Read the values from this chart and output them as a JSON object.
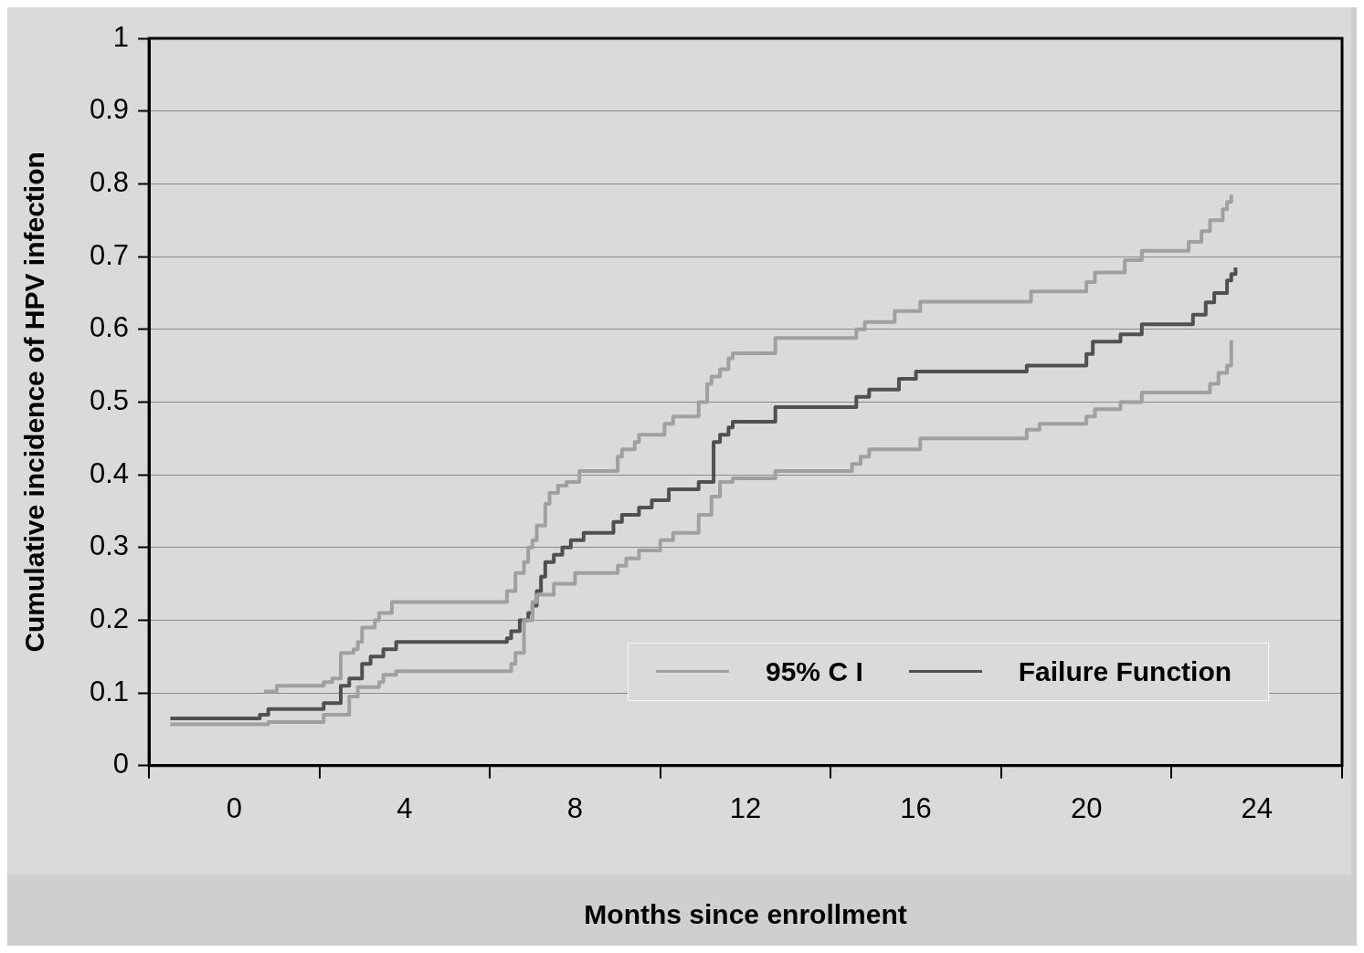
{
  "chart_data": {
    "type": "step",
    "xlabel": "Months since enrollment",
    "ylabel": "Cumulative incidence of HPV infection",
    "xlim": [
      -2,
      26
    ],
    "ylim": [
      0,
      1
    ],
    "xticks": [
      {
        "value": -2,
        "label": null
      },
      0,
      {
        "value": 2,
        "label": null
      },
      4,
      {
        "value": 6,
        "label": null
      },
      8,
      {
        "value": 10,
        "label": null
      },
      12,
      {
        "value": 14,
        "label": null
      },
      16,
      {
        "value": 18,
        "label": null
      },
      20,
      {
        "value": 22,
        "label": null
      },
      24,
      {
        "value": 26,
        "label": null
      }
    ],
    "yticks": [
      0,
      0.1,
      0.2,
      0.3,
      0.4,
      0.5,
      0.6,
      0.7,
      0.8,
      0.9,
      1
    ],
    "grid": "y",
    "legend": "bottom right",
    "line_style": "solid",
    "marker": "none",
    "series": [
      {
        "name": "95% C I",
        "color": "#a0a0a0",
        "x": [
          0.7,
          1.0,
          2.1,
          2.3,
          2.5,
          2.5,
          2.8,
          2.9,
          3.0,
          3.3,
          3.4,
          3.7,
          6.4,
          6.6,
          6.8,
          6.9,
          7.0,
          7.1,
          7.3,
          7.4,
          7.6,
          7.8,
          8.1,
          9.0,
          9.1,
          9.4,
          9.5,
          10.1,
          10.3,
          10.9,
          11.1,
          11.2,
          11.4,
          11.6,
          11.7,
          12.7,
          14.6,
          14.8,
          15.5,
          16.1,
          18.7,
          20.0,
          20.2,
          20.9,
          21.3,
          22.4,
          22.7,
          22.9,
          23.2,
          23.3,
          23.4
        ],
        "values": [
          0.102,
          0.11,
          0.115,
          0.12,
          0.13,
          0.155,
          0.16,
          0.17,
          0.19,
          0.2,
          0.21,
          0.225,
          0.24,
          0.265,
          0.28,
          0.3,
          0.31,
          0.33,
          0.36,
          0.375,
          0.385,
          0.39,
          0.405,
          0.425,
          0.435,
          0.445,
          0.455,
          0.47,
          0.48,
          0.5,
          0.525,
          0.535,
          0.545,
          0.56,
          0.567,
          0.588,
          0.6,
          0.61,
          0.625,
          0.638,
          0.652,
          0.665,
          0.678,
          0.695,
          0.708,
          0.72,
          0.735,
          0.75,
          0.765,
          0.775,
          0.785
        ]
      },
      {
        "color": "#a0a0a0",
        "x": [
          -1.5,
          0.8,
          2.1,
          2.7,
          2.9,
          3.4,
          3.5,
          3.8,
          6.5,
          6.6,
          6.8,
          6.8,
          7.0,
          7.1,
          7.5,
          8.0,
          9.0,
          9.2,
          9.5,
          10.0,
          10.3,
          10.9,
          11.2,
          11.4,
          11.7,
          12.7,
          14.5,
          14.7,
          14.9,
          16.1,
          18.6,
          18.9,
          20.0,
          20.2,
          20.8,
          21.3,
          22.9,
          23.1,
          23.3,
          23.4,
          23.4
        ],
        "values": [
          0.057,
          0.06,
          0.07,
          0.095,
          0.108,
          0.115,
          0.125,
          0.13,
          0.14,
          0.155,
          0.175,
          0.2,
          0.225,
          0.235,
          0.25,
          0.265,
          0.275,
          0.285,
          0.296,
          0.31,
          0.32,
          0.345,
          0.37,
          0.39,
          0.395,
          0.405,
          0.415,
          0.425,
          0.435,
          0.45,
          0.462,
          0.47,
          0.48,
          0.49,
          0.5,
          0.513,
          0.525,
          0.54,
          0.55,
          0.565,
          0.585
        ]
      },
      {
        "name": "Failure Function",
        "color": "#505050",
        "x": [
          -1.5,
          0.6,
          0.8,
          2.1,
          2.5,
          2.7,
          3.0,
          3.2,
          3.5,
          3.8,
          6.4,
          6.5,
          6.7,
          6.9,
          7.0,
          7.1,
          7.2,
          7.3,
          7.5,
          7.7,
          7.9,
          8.2,
          8.9,
          9.1,
          9.5,
          9.8,
          10.2,
          10.9,
          11.25,
          11.4,
          11.6,
          11.7,
          12.7,
          14.6,
          14.9,
          15.6,
          16.0,
          18.6,
          20.0,
          20.15,
          20.8,
          21.3,
          22.5,
          22.8,
          23.0,
          23.3,
          23.4,
          23.5
        ],
        "values": [
          0.065,
          0.07,
          0.078,
          0.086,
          0.11,
          0.12,
          0.14,
          0.15,
          0.16,
          0.17,
          0.175,
          0.185,
          0.2,
          0.21,
          0.22,
          0.24,
          0.26,
          0.28,
          0.29,
          0.3,
          0.31,
          0.32,
          0.335,
          0.345,
          0.355,
          0.365,
          0.38,
          0.39,
          0.445,
          0.455,
          0.465,
          0.473,
          0.493,
          0.507,
          0.517,
          0.532,
          0.542,
          0.55,
          0.566,
          0.583,
          0.593,
          0.607,
          0.62,
          0.637,
          0.65,
          0.667,
          0.676,
          0.685
        ]
      }
    ]
  }
}
